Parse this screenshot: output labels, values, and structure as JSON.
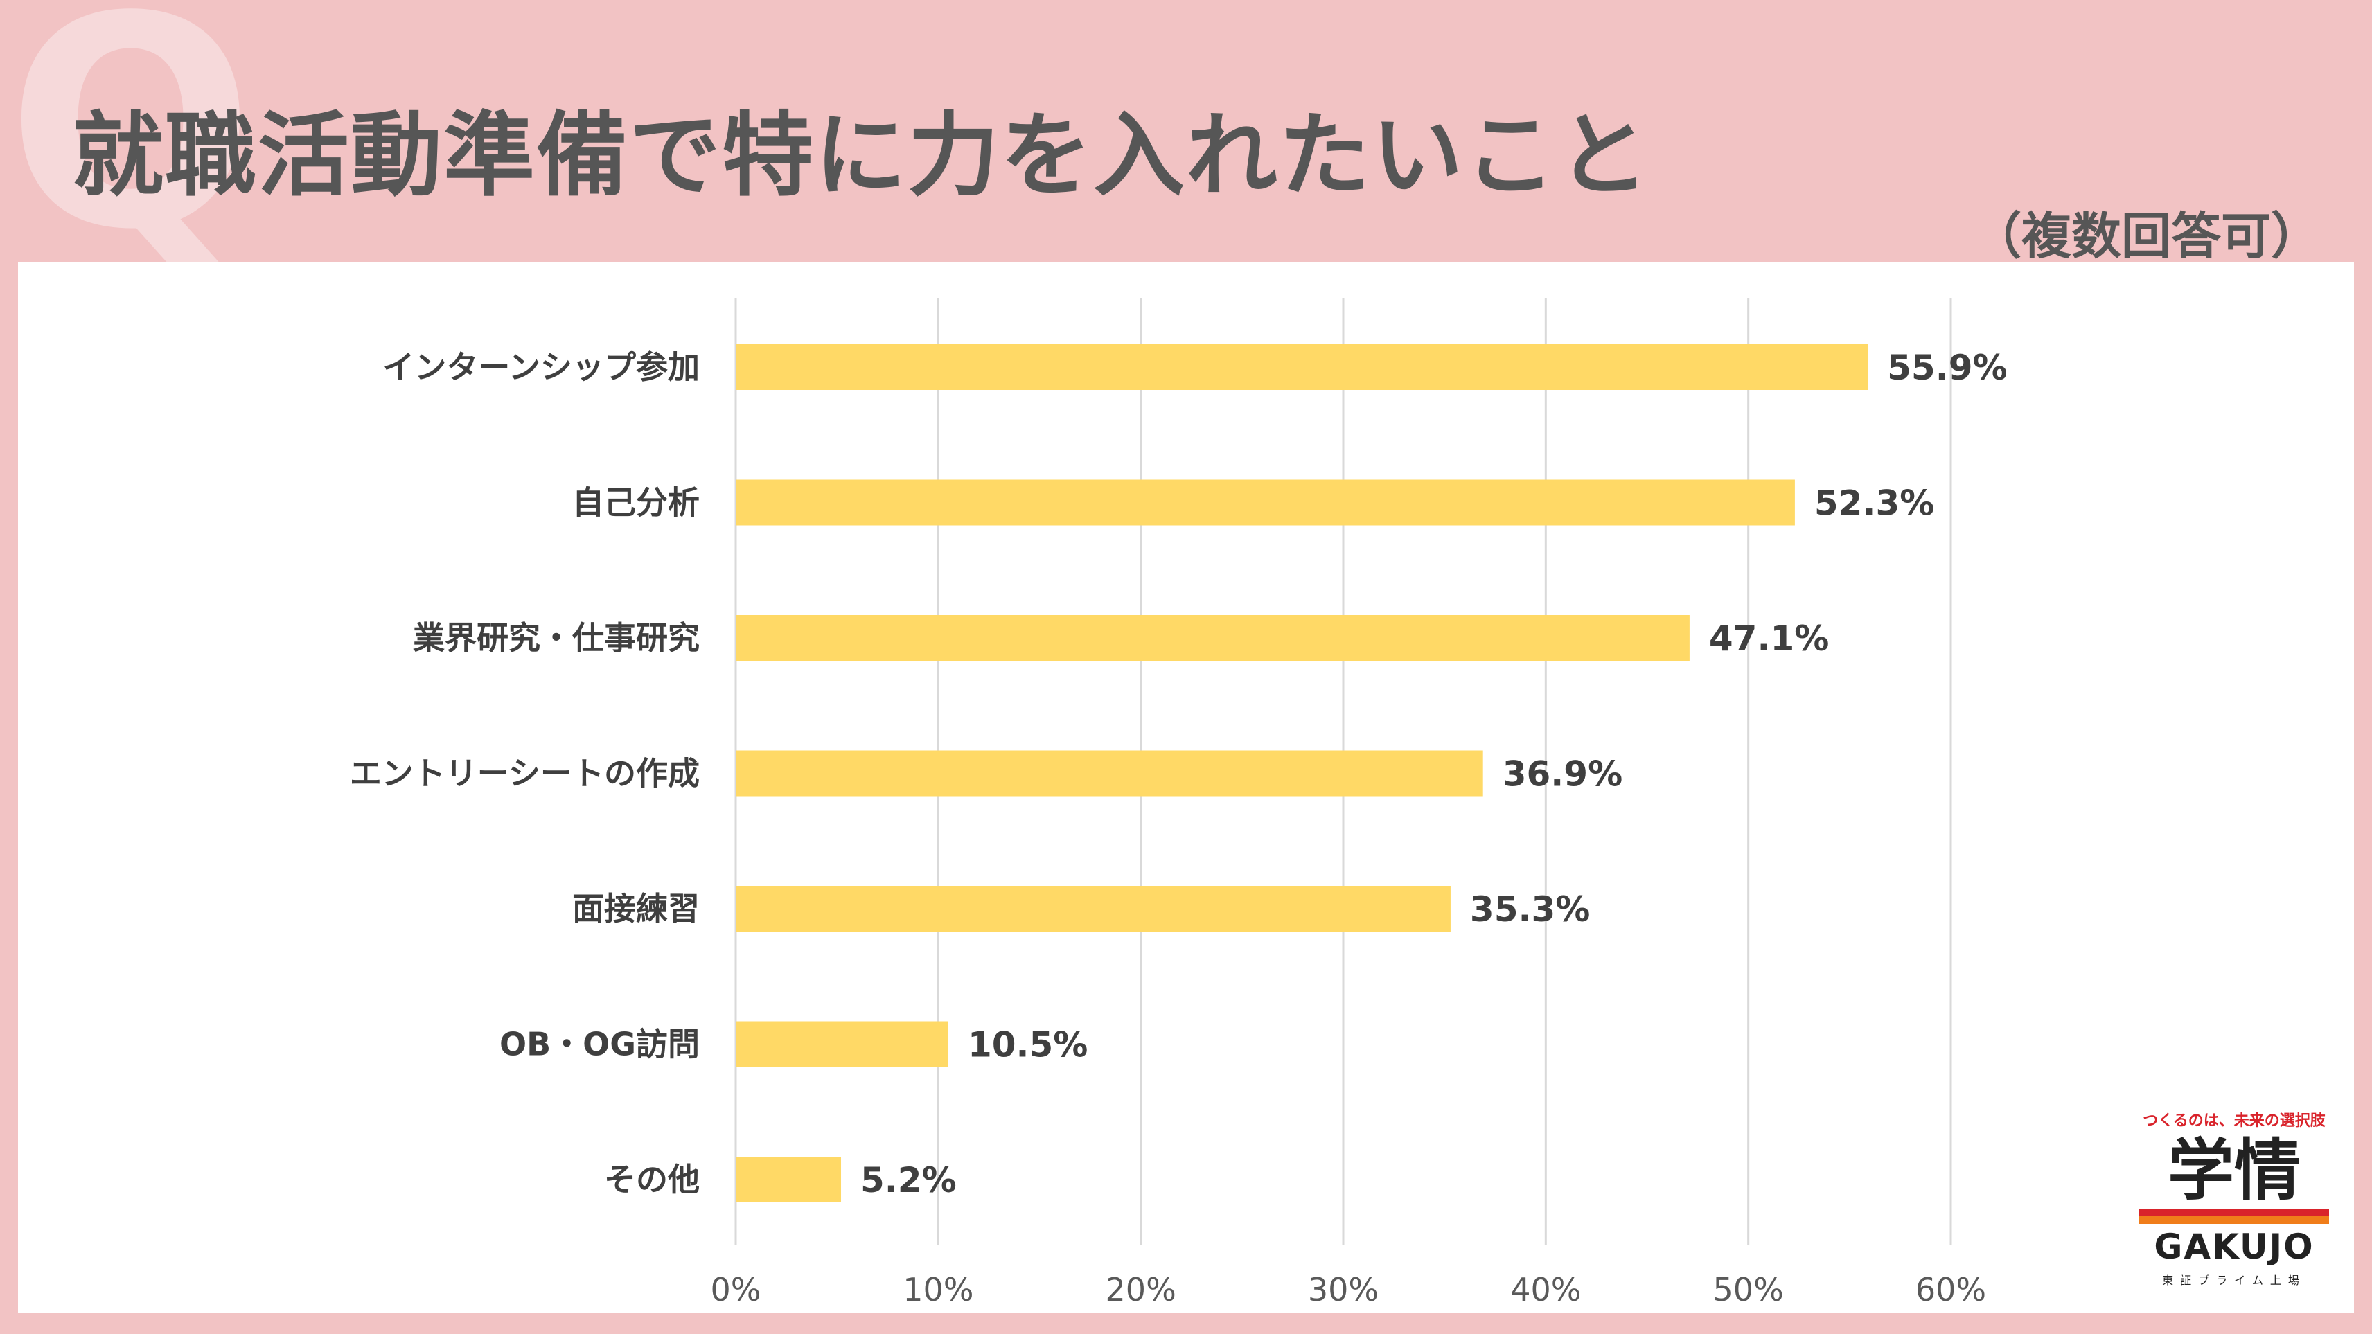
{
  "header": {
    "q_mark": "Q",
    "title": "就職活動準備で特に力を入れたいこと",
    "note": "（複数回答可）"
  },
  "chart_data": {
    "type": "bar",
    "orientation": "horizontal",
    "categories": [
      "インターンシップ参加",
      "自己分析",
      "業界研究・仕事研究",
      "エントリーシートの作成",
      "面接練習",
      "OB・OG訪問",
      "その他"
    ],
    "values": [
      55.9,
      52.3,
      47.1,
      36.9,
      35.3,
      10.5,
      5.2
    ],
    "value_labels": [
      "55.9%",
      "52.3%",
      "47.1%",
      "36.9%",
      "35.3%",
      "10.5%",
      "5.2%"
    ],
    "xlim": [
      0,
      60
    ],
    "ticks": [
      0,
      10,
      20,
      30,
      40,
      50,
      60
    ],
    "tick_labels": [
      "0%",
      "10%",
      "20%",
      "30%",
      "40%",
      "50%",
      "60%"
    ],
    "grid": true,
    "bar_color": "#ffd966",
    "grid_color": "#d9d9d9"
  },
  "brand": {
    "tagline": "つくるのは、未来の選択肢",
    "kanji": "学情",
    "name": "GAKUJO",
    "sub": "東証プライム上場"
  }
}
